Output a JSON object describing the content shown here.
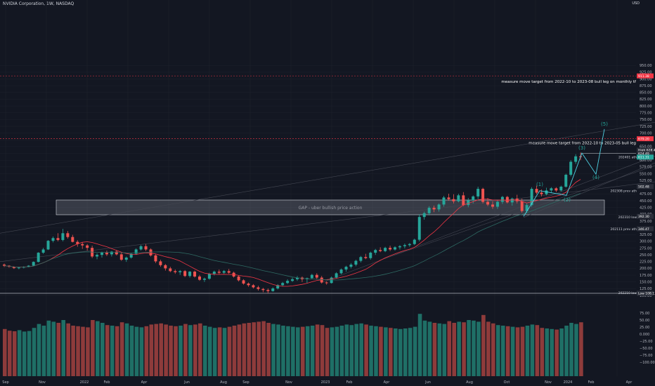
{
  "header": {
    "symbol": "NVIDIA Corporation, 1W, NASDAQ",
    "currency": "USD"
  },
  "colors": {
    "up": "#26a69a",
    "down": "#ef5350",
    "ma": "#f23645",
    "target_line": "#f23645",
    "background": "#131722"
  },
  "axis": {
    "y_ticks": [
      "950.00",
      "925.00",
      "900.00",
      "875.00",
      "850.00",
      "825.00",
      "800.00",
      "775.00",
      "750.00",
      "725.00",
      "700.00",
      "675.00",
      "650.00",
      "625.00",
      "600.00",
      "575.00",
      "550.00",
      "525.00",
      "500.00",
      "475.00",
      "450.00",
      "425.00",
      "400.00",
      "375.00",
      "350.00",
      "325.00",
      "300.00",
      "275.00",
      "250.00",
      "225.00",
      "200.00",
      "175.00",
      "150.00",
      "125.00",
      "100.00"
    ],
    "vol_ticks": [
      "75.00",
      "50.00",
      "25.00",
      "0.000",
      "−25.00",
      "−50.00",
      "−75.00",
      "−100.00"
    ],
    "x_ticks": [
      "Sep",
      "Nov",
      "2022",
      "Feb",
      "Apr",
      "Jun",
      "Aug",
      "Sep",
      "Nov",
      "2023",
      "Feb",
      "Apr",
      "Jun",
      "Aug",
      "Oct",
      "Nov",
      "2024",
      "Feb",
      "Apr"
    ]
  },
  "price_tags": {
    "target_top": "911.38",
    "target_mid": "679.20",
    "high_label": "High",
    "high": "628.49",
    "ath_price": "624.49",
    "last": "611.31",
    "prev_ath": "502.48",
    "low_2023": "392.30",
    "prev_ath_2021": "346.47",
    "low_label": "Low",
    "low": "108.13"
  },
  "annotations": {
    "target_top_note": "measure move target from 2022-10 to 2023-08 bull leg on monthly tf",
    "target_mid_note": "measure move target from 2022-10 to 2023-05 bull leg",
    "ath_2024": "202401 ath",
    "ath_2023": "202308 prev ath",
    "low_2023": "202310 low",
    "prev_ath_2021": "202111 prev ath",
    "low_2022": "202210 low",
    "gap": "GAP - uber bullish price action",
    "waves": [
      "(1)",
      "(2)",
      "(3)",
      "(4)",
      "(5)"
    ]
  },
  "chart_data": {
    "type": "candlestick",
    "title": "NVIDIA Corporation, 1W, NASDAQ",
    "ylim": [
      95,
      960
    ],
    "y_scale": "linear",
    "grid": true,
    "series": [
      {
        "name": "price",
        "ohlc": [
          [
            214,
            218,
            205,
            210
          ],
          [
            210,
            212,
            203,
            206
          ],
          [
            206,
            208,
            198,
            201
          ],
          [
            201,
            205,
            197,
            203
          ],
          [
            203,
            208,
            200,
            206
          ],
          [
            206,
            212,
            204,
            210
          ],
          [
            210,
            226,
            208,
            224
          ],
          [
            224,
            260,
            222,
            258
          ],
          [
            258,
            276,
            254,
            270
          ],
          [
            270,
            305,
            268,
            302
          ],
          [
            302,
            318,
            296,
            312
          ],
          [
            312,
            330,
            300,
            305
          ],
          [
            305,
            346,
            300,
            330
          ],
          [
            330,
            338,
            310,
            316
          ],
          [
            316,
            324,
            296,
            298
          ],
          [
            298,
            304,
            280,
            290
          ],
          [
            290,
            296,
            272,
            285
          ],
          [
            285,
            290,
            266,
            276
          ],
          [
            276,
            284,
            238,
            244
          ],
          [
            244,
            256,
            234,
            250
          ],
          [
            250,
            262,
            240,
            258
          ],
          [
            258,
            266,
            246,
            252
          ],
          [
            252,
            264,
            244,
            262
          ],
          [
            262,
            268,
            248,
            252
          ],
          [
            252,
            258,
            228,
            232
          ],
          [
            232,
            244,
            224,
            240
          ],
          [
            240,
            256,
            236,
            254
          ],
          [
            254,
            274,
            250,
            270
          ],
          [
            270,
            286,
            266,
            282
          ],
          [
            282,
            290,
            264,
            270
          ],
          [
            270,
            274,
            244,
            248
          ],
          [
            248,
            252,
            220,
            226
          ],
          [
            226,
            232,
            206,
            212
          ],
          [
            212,
            216,
            192,
            200
          ],
          [
            200,
            206,
            186,
            190
          ],
          [
            190,
            196,
            180,
            186
          ],
          [
            186,
            194,
            176,
            190
          ],
          [
            190,
            194,
            168,
            172
          ],
          [
            172,
            190,
            166,
            188
          ],
          [
            188,
            192,
            166,
            170
          ],
          [
            170,
            176,
            154,
            158
          ],
          [
            158,
            166,
            150,
            162
          ],
          [
            162,
            184,
            158,
            180
          ],
          [
            180,
            192,
            174,
            188
          ],
          [
            188,
            196,
            178,
            184
          ],
          [
            184,
            194,
            180,
            190
          ],
          [
            190,
            198,
            180,
            184
          ],
          [
            184,
            188,
            166,
            170
          ],
          [
            170,
            174,
            152,
            156
          ],
          [
            156,
            160,
            140,
            144
          ],
          [
            144,
            148,
            132,
            138
          ],
          [
            138,
            142,
            126,
            130
          ],
          [
            130,
            136,
            118,
            124
          ],
          [
            124,
            128,
            112,
            120
          ],
          [
            120,
            126,
            108,
            116
          ],
          [
            116,
            130,
            114,
            126
          ],
          [
            126,
            142,
            122,
            138
          ],
          [
            138,
            150,
            134,
            146
          ],
          [
            146,
            160,
            142,
            154
          ],
          [
            154,
            166,
            150,
            160
          ],
          [
            160,
            172,
            154,
            166
          ],
          [
            166,
            170,
            150,
            160
          ],
          [
            160,
            166,
            146,
            164
          ],
          [
            164,
            180,
            160,
            176
          ],
          [
            176,
            182,
            160,
            166
          ],
          [
            166,
            172,
            144,
            148
          ],
          [
            148,
            152,
            140,
            146
          ],
          [
            146,
            170,
            144,
            166
          ],
          [
            166,
            186,
            162,
            182
          ],
          [
            182,
            200,
            178,
            196
          ],
          [
            196,
            210,
            188,
            206
          ],
          [
            206,
            220,
            200,
            214
          ],
          [
            214,
            232,
            208,
            228
          ],
          [
            228,
            246,
            222,
            242
          ],
          [
            242,
            254,
            234,
            238
          ],
          [
            238,
            262,
            232,
            258
          ],
          [
            258,
            272,
            250,
            268
          ],
          [
            268,
            278,
            260,
            264
          ],
          [
            264,
            280,
            260,
            276
          ],
          [
            276,
            284,
            264,
            270
          ],
          [
            270,
            282,
            266,
            278
          ],
          [
            278,
            286,
            270,
            282
          ],
          [
            282,
            292,
            274,
            286
          ],
          [
            286,
            294,
            280,
            290
          ],
          [
            290,
            310,
            286,
            306
          ],
          [
            306,
            400,
            300,
            390
          ],
          [
            390,
            410,
            380,
            404
          ],
          [
            404,
            430,
            396,
            424
          ],
          [
            424,
            432,
            408,
            418
          ],
          [
            418,
            440,
            410,
            436
          ],
          [
            436,
            468,
            428,
            462
          ],
          [
            462,
            476,
            450,
            456
          ],
          [
            456,
            474,
            440,
            448
          ],
          [
            448,
            476,
            444,
            470
          ],
          [
            470,
            482,
            430,
            434
          ],
          [
            434,
            460,
            426,
            452
          ],
          [
            452,
            470,
            440,
            466
          ],
          [
            466,
            502,
            456,
            494
          ],
          [
            494,
            498,
            440,
            446
          ],
          [
            446,
            460,
            430,
            436
          ],
          [
            436,
            448,
            420,
            428
          ],
          [
            428,
            452,
            420,
            446
          ],
          [
            446,
            468,
            438,
            464
          ],
          [
            464,
            468,
            440,
            444
          ],
          [
            444,
            462,
            432,
            458
          ],
          [
            458,
            472,
            440,
            448
          ],
          [
            448,
            458,
            406,
            412
          ],
          [
            412,
            440,
            404,
            434
          ],
          [
            434,
            500,
            428,
            494
          ],
          [
            494,
            506,
            474,
            480
          ],
          [
            480,
            492,
            466,
            474
          ],
          [
            474,
            498,
            470,
            488
          ],
          [
            488,
            500,
            480,
            496
          ],
          [
            496,
            500,
            482,
            488
          ],
          [
            488,
            506,
            484,
            502
          ],
          [
            502,
            550,
            498,
            546
          ],
          [
            546,
            600,
            540,
            594
          ],
          [
            594,
            622,
            586,
            614
          ],
          [
            614,
            628,
            600,
            611
          ]
        ]
      },
      {
        "name": "volume",
        "values": [
          18,
          12,
          10,
          14,
          9,
          11,
          22,
          36,
          30,
          48,
          44,
          40,
          50,
          38,
          30,
          28,
          26,
          24,
          50,
          46,
          40,
          32,
          30,
          28,
          42,
          38,
          30,
          26,
          24,
          28,
          34,
          36,
          38,
          34,
          30,
          28,
          30,
          36,
          32,
          34,
          38,
          30,
          26,
          22,
          24,
          22,
          26,
          30,
          34,
          38,
          40,
          42,
          44,
          46,
          40,
          36,
          34,
          30,
          28,
          26,
          24,
          26,
          28,
          30,
          34,
          32,
          22,
          24,
          26,
          30,
          34,
          32,
          36,
          38,
          34,
          30,
          28,
          26,
          24,
          22,
          20,
          18,
          20,
          22,
          26,
          72,
          48,
          44,
          40,
          38,
          36,
          46,
          40,
          44,
          42,
          50,
          48,
          44,
          68,
          44,
          38,
          32,
          30,
          28,
          26,
          24,
          26,
          30,
          34,
          32,
          22,
          20,
          18,
          16,
          20,
          30,
          40,
          36,
          42
        ]
      }
    ]
  }
}
